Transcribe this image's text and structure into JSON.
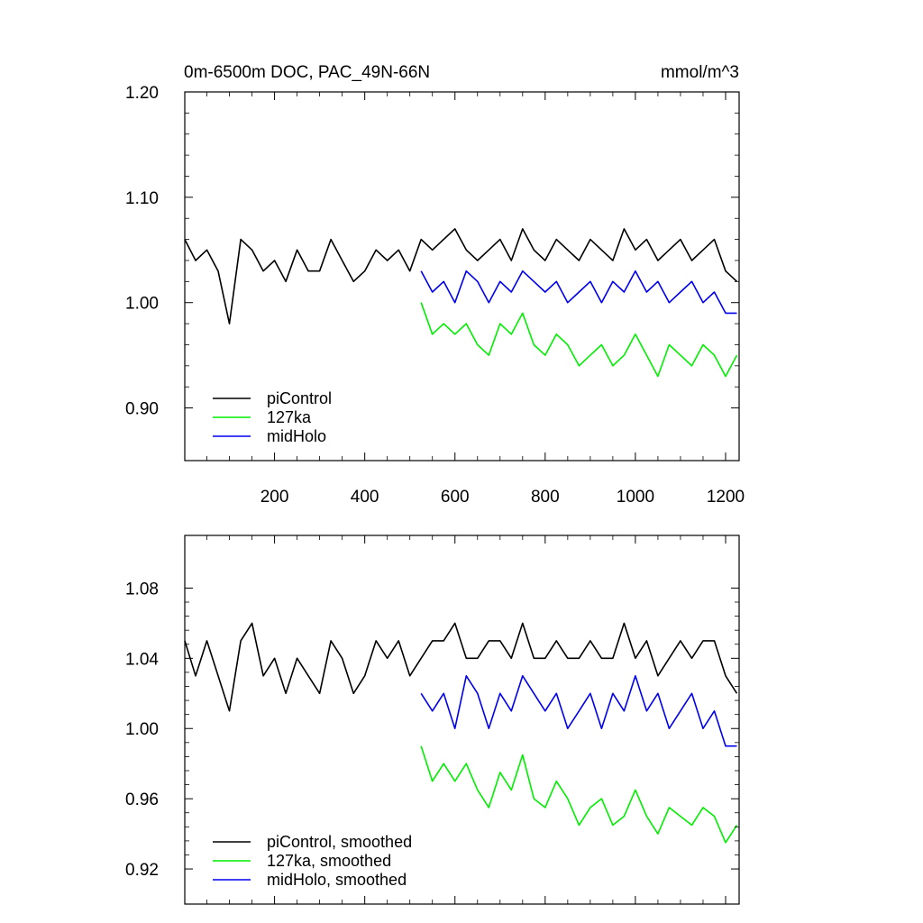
{
  "chart_data": [
    {
      "type": "line",
      "title": "0m-6500m DOC, PAC_49N-66N",
      "units": "mmol/m^3",
      "xlim": [
        1,
        1230
      ],
      "ylim": [
        0.85,
        1.2
      ],
      "xticks": [
        200,
        400,
        600,
        800,
        1000,
        1200
      ],
      "yticks": [
        0.9,
        1.0,
        1.1,
        1.2
      ],
      "ytick_labels": [
        "0.90",
        "1.00",
        "1.10",
        "1.20"
      ],
      "legend_position": "bottom-left",
      "series": [
        {
          "name": "piControl",
          "color": "#000000",
          "x": [
            1,
            25,
            50,
            75,
            100,
            125,
            150,
            175,
            200,
            225,
            250,
            275,
            300,
            325,
            350,
            375,
            400,
            425,
            450,
            475,
            500,
            525,
            550,
            575,
            600,
            625,
            650,
            675,
            700,
            725,
            750,
            775,
            800,
            825,
            850,
            875,
            900,
            925,
            950,
            975,
            1000,
            1025,
            1050,
            1075,
            1100,
            1125,
            1150,
            1175,
            1200,
            1225
          ],
          "y": [
            1.06,
            1.04,
            1.05,
            1.03,
            0.98,
            1.06,
            1.05,
            1.03,
            1.04,
            1.02,
            1.05,
            1.03,
            1.03,
            1.06,
            1.04,
            1.02,
            1.03,
            1.05,
            1.04,
            1.05,
            1.03,
            1.06,
            1.05,
            1.06,
            1.07,
            1.05,
            1.04,
            1.05,
            1.06,
            1.04,
            1.07,
            1.05,
            1.04,
            1.06,
            1.05,
            1.04,
            1.06,
            1.05,
            1.04,
            1.07,
            1.05,
            1.06,
            1.04,
            1.05,
            1.06,
            1.04,
            1.05,
            1.06,
            1.03,
            1.02
          ]
        },
        {
          "name": "127ka",
          "color": "#00ee00",
          "x": [
            525,
            550,
            575,
            600,
            625,
            650,
            675,
            700,
            725,
            750,
            775,
            800,
            825,
            850,
            875,
            900,
            925,
            950,
            975,
            1000,
            1025,
            1050,
            1075,
            1100,
            1125,
            1150,
            1175,
            1200,
            1225
          ],
          "y": [
            1.0,
            0.97,
            0.98,
            0.97,
            0.98,
            0.96,
            0.95,
            0.98,
            0.97,
            0.99,
            0.96,
            0.95,
            0.97,
            0.96,
            0.94,
            0.95,
            0.96,
            0.94,
            0.95,
            0.97,
            0.95,
            0.93,
            0.96,
            0.95,
            0.94,
            0.96,
            0.95,
            0.93,
            0.95
          ]
        },
        {
          "name": "midHolo",
          "color": "#0000ee",
          "x": [
            525,
            550,
            575,
            600,
            625,
            650,
            675,
            700,
            725,
            750,
            775,
            800,
            825,
            850,
            875,
            900,
            925,
            950,
            975,
            1000,
            1025,
            1050,
            1075,
            1100,
            1125,
            1150,
            1175,
            1200,
            1225
          ],
          "y": [
            1.03,
            1.01,
            1.02,
            1.0,
            1.03,
            1.02,
            1.0,
            1.02,
            1.01,
            1.03,
            1.02,
            1.01,
            1.02,
            1.0,
            1.01,
            1.02,
            1.0,
            1.02,
            1.01,
            1.03,
            1.01,
            1.02,
            1.0,
            1.01,
            1.02,
            1.0,
            1.01,
            0.99,
            0.99
          ]
        }
      ]
    },
    {
      "type": "line",
      "xlim": [
        1,
        1230
      ],
      "ylim": [
        0.9,
        1.11
      ],
      "xticks": [
        200,
        400,
        600,
        800,
        1000,
        1200
      ],
      "yticks": [
        0.92,
        0.96,
        1.0,
        1.04,
        1.08
      ],
      "ytick_labels": [
        "0.92",
        "0.96",
        "1.00",
        "1.04",
        "1.08"
      ],
      "legend_position": "bottom-left",
      "series": [
        {
          "name": "piControl, smoothed",
          "color": "#000000",
          "x": [
            1,
            25,
            50,
            75,
            100,
            125,
            150,
            175,
            200,
            225,
            250,
            275,
            300,
            325,
            350,
            375,
            400,
            425,
            450,
            475,
            500,
            525,
            550,
            575,
            600,
            625,
            650,
            675,
            700,
            725,
            750,
            775,
            800,
            825,
            850,
            875,
            900,
            925,
            950,
            975,
            1000,
            1025,
            1050,
            1075,
            1100,
            1125,
            1150,
            1175,
            1200,
            1225
          ],
          "y": [
            1.05,
            1.03,
            1.05,
            1.03,
            1.01,
            1.05,
            1.06,
            1.03,
            1.04,
            1.02,
            1.04,
            1.03,
            1.02,
            1.05,
            1.04,
            1.02,
            1.03,
            1.05,
            1.04,
            1.05,
            1.03,
            1.04,
            1.05,
            1.05,
            1.06,
            1.04,
            1.04,
            1.05,
            1.05,
            1.04,
            1.06,
            1.04,
            1.04,
            1.05,
            1.04,
            1.04,
            1.05,
            1.04,
            1.04,
            1.06,
            1.04,
            1.05,
            1.03,
            1.04,
            1.05,
            1.04,
            1.05,
            1.05,
            1.03,
            1.02
          ]
        },
        {
          "name": "127ka, smoothed",
          "color": "#00ee00",
          "x": [
            525,
            550,
            575,
            600,
            625,
            650,
            675,
            700,
            725,
            750,
            775,
            800,
            825,
            850,
            875,
            900,
            925,
            950,
            975,
            1000,
            1025,
            1050,
            1075,
            1100,
            1125,
            1150,
            1175,
            1200,
            1225
          ],
          "y": [
            0.99,
            0.97,
            0.98,
            0.97,
            0.98,
            0.965,
            0.955,
            0.975,
            0.965,
            0.985,
            0.96,
            0.955,
            0.97,
            0.96,
            0.945,
            0.955,
            0.96,
            0.945,
            0.95,
            0.965,
            0.95,
            0.94,
            0.955,
            0.95,
            0.945,
            0.955,
            0.95,
            0.935,
            0.945
          ]
        },
        {
          "name": "midHolo, smoothed",
          "color": "#0000ee",
          "x": [
            525,
            550,
            575,
            600,
            625,
            650,
            675,
            700,
            725,
            750,
            775,
            800,
            825,
            850,
            875,
            900,
            925,
            950,
            975,
            1000,
            1025,
            1050,
            1075,
            1100,
            1125,
            1150,
            1175,
            1200,
            1225
          ],
          "y": [
            1.02,
            1.01,
            1.02,
            1.0,
            1.03,
            1.02,
            1.0,
            1.02,
            1.01,
            1.03,
            1.02,
            1.01,
            1.02,
            1.0,
            1.01,
            1.02,
            1.0,
            1.02,
            1.01,
            1.03,
            1.01,
            1.02,
            1.0,
            1.01,
            1.02,
            1.0,
            1.01,
            0.99,
            0.99
          ]
        }
      ]
    }
  ]
}
